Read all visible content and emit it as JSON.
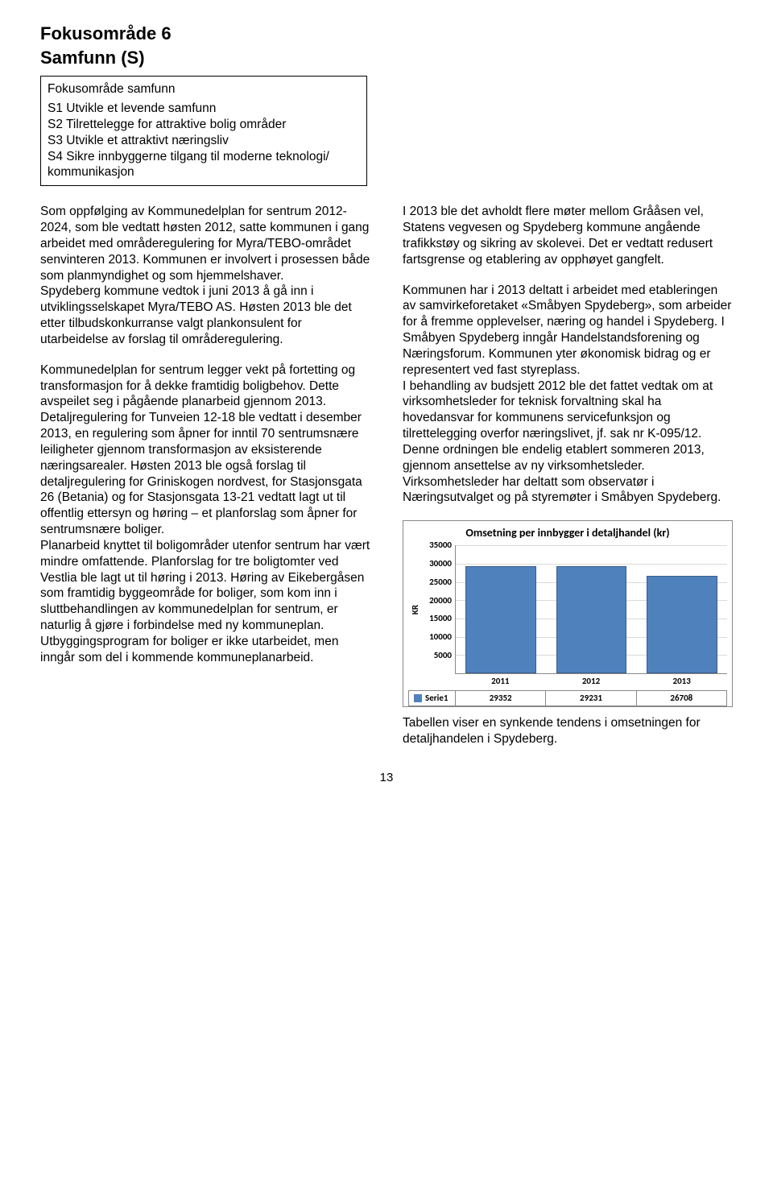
{
  "title_line1": "Fokusområde 6",
  "title_line2": "Samfunn (S)",
  "box": {
    "heading": "Fokusområde samfunn",
    "lines": [
      "S1 Utvikle et levende samfunn",
      "S2 Tilrettelegge for attraktive bolig områder",
      "S3 Utvikle et attraktivt næringsliv",
      "S4 Sikre innbyggerne tilgang til moderne teknologi/ kommunikasjon"
    ]
  },
  "left": {
    "p1": "Som oppfølging av Kommunedelplan for sentrum 2012-2024, som ble vedtatt høsten 2012, satte kommunen i gang arbeidet med områderegulering for Myra/TEBO-området senvinteren 2013. Kommunen er involvert i prosessen både som planmyndighet og som hjemmelshaver.\nSpydeberg kommune vedtok i juni 2013 å gå inn i utviklingsselskapet Myra/TEBO AS. Høsten 2013 ble det etter tilbudskonkurranse valgt plankonsulent for utarbeidelse av forslag til områderegulering.",
    "p2": "Kommunedelplan for sentrum legger vekt på fortetting og transformasjon for å dekke framtidig boligbehov. Dette avspeilet seg i pågående planarbeid gjennom 2013. Detaljregulering for Tunveien 12-18 ble vedtatt i desember 2013, en regulering som åpner for inntil 70 sentrumsnære leiligheter gjennom transformasjon av eksisterende næringsarealer. Høsten 2013 ble også forslag til detaljregulering for Griniskogen nordvest, for Stasjonsgata 26 (Betania) og for Stasjonsgata 13-21 vedtatt lagt ut til offentlig ettersyn og høring – et  planforslag som åpner for sentrumsnære boliger.\nPlanarbeid knyttet til boligområder utenfor sentrum har vært mindre omfattende. Planforslag for tre boligtomter ved Vestlia ble lagt ut til høring i 2013. Høring av Eikebergåsen som framtidig byggeområde for boliger, som kom inn i sluttbehandlingen av kommunedelplan for sentrum, er naturlig å gjøre i forbindelse med ny kommuneplan.\nUtbyggingsprogram for boliger er ikke utarbeidet, men inngår som del i kommende kommuneplanarbeid."
  },
  "right": {
    "p1": "I 2013 ble det avholdt flere møter mellom Grååsen vel, Statens vegvesen og Spydeberg kommune angående trafikkstøy og sikring av skolevei. Det er vedtatt redusert fartsgrense og etablering av opphøyet gangfelt.",
    "p2": "Kommunen har i 2013 deltatt i arbeidet med etableringen av samvirkeforetaket «Småbyen Spydeberg», som arbeider for å fremme opplevelser, næring og handel i Spydeberg. I Småbyen Spydeberg inngår Handelstandsforening og Næringsforum. Kommunen yter økonomisk bidrag og er representert ved fast styreplass.\nI behandling av budsjett 2012 ble det fattet vedtak om at virksomhetsleder for teknisk forvaltning skal ha hovedansvar for kommunens servicefunksjon og tilrettelegging overfor næringslivet, jf. sak nr K-095/12. Denne ordningen ble endelig etablert sommeren 2013, gjennom ansettelse av ny virksomhetsleder. Virksomhetsleder har deltatt som observatør i Næringsutvalget og på styremøter i Småbyen Spydeberg.",
    "p3": "Tabellen viser en synkende tendens i omsetningen for detaljhandelen i Spydeberg."
  },
  "chart": {
    "title": "Omsetning per innbygger i detaljhandel (kr)",
    "ylabel": "KR",
    "categories": [
      "2011",
      "2012",
      "2013"
    ],
    "values": [
      29352,
      29231,
      26708
    ],
    "ymax": 35000,
    "ytick_step": 5000,
    "yticks": [
      35000,
      30000,
      25000,
      20000,
      15000,
      10000,
      5000
    ],
    "bar_color": "#4f81bd",
    "bar_border": "#385d8a",
    "grid_color": "#d9d9d9",
    "series_label": "Serie1"
  },
  "page_number": "13"
}
